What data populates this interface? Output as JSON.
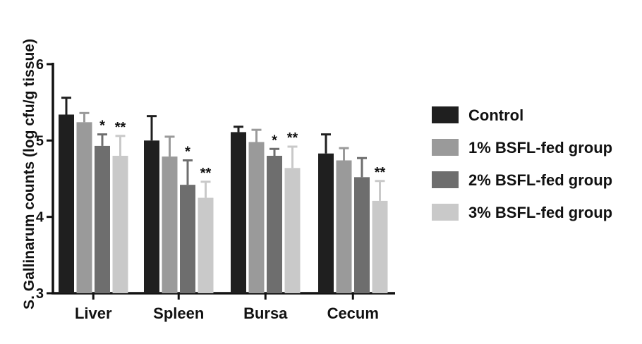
{
  "chart_data": {
    "type": "bar",
    "ylabel": "S. Gallinarum counts (log cfu/g tissue)",
    "xlabel": "",
    "ylim": [
      3,
      6
    ],
    "yticks": [
      3,
      4,
      5,
      6
    ],
    "ytick_labels": [
      "3",
      "4",
      "5",
      "6"
    ],
    "categories": [
      "Liver",
      "Spleen",
      "Bursa",
      "Cecum"
    ],
    "legend_position": "right",
    "series": [
      {
        "name": "Control",
        "color": "#1f1f1f",
        "values": [
          5.34,
          5.0,
          5.11,
          4.83
        ],
        "errors": [
          0.22,
          0.32,
          0.07,
          0.25
        ],
        "sig": [
          "",
          "",
          "",
          ""
        ]
      },
      {
        "name": "1% BSFL-fed group",
        "color": "#9a9a9a",
        "values": [
          5.24,
          4.79,
          4.98,
          4.74
        ],
        "errors": [
          0.12,
          0.26,
          0.16,
          0.16
        ],
        "sig": [
          "",
          "",
          "",
          ""
        ]
      },
      {
        "name": "2% BSFL-fed group",
        "color": "#6e6e6e",
        "values": [
          4.93,
          4.42,
          4.8,
          4.52
        ],
        "errors": [
          0.15,
          0.32,
          0.09,
          0.25
        ],
        "sig": [
          "*",
          "*",
          "*",
          ""
        ]
      },
      {
        "name": "3% BSFL-fed group",
        "color": "#c9c9c9",
        "values": [
          4.8,
          4.25,
          4.64,
          4.21
        ],
        "errors": [
          0.26,
          0.21,
          0.28,
          0.26
        ],
        "sig": [
          "**",
          "**",
          "**",
          "**"
        ]
      }
    ]
  }
}
